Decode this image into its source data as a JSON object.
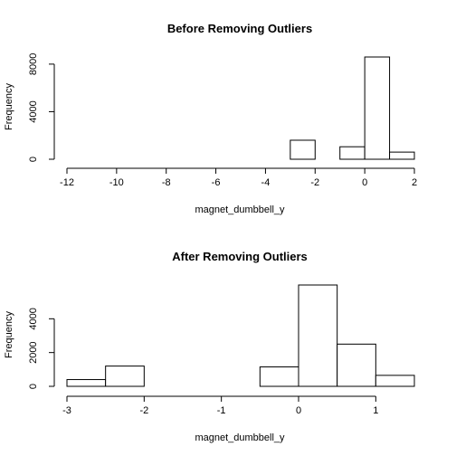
{
  "chart_data": [
    {
      "type": "bar",
      "title": "Before Removing Outliers",
      "xlabel": "magnet_dumbbell_y",
      "ylabel": "Frequency",
      "xlim": [
        -12,
        2
      ],
      "ylim": [
        0,
        8600
      ],
      "x_ticks": [
        -12,
        -10,
        -8,
        -6,
        -4,
        -2,
        0,
        2
      ],
      "y_ticks": [
        0,
        4000,
        8000
      ],
      "bins": [
        {
          "x0": -12,
          "x1": -3,
          "count": 0
        },
        {
          "x0": -3,
          "x1": -2,
          "count": 1600
        },
        {
          "x0": -2,
          "x1": -1,
          "count": 0
        },
        {
          "x0": -1,
          "x1": 0,
          "count": 1050
        },
        {
          "x0": 0,
          "x1": 1,
          "count": 8600
        },
        {
          "x0": 1,
          "x1": 2,
          "count": 600
        }
      ]
    },
    {
      "type": "bar",
      "title": "After Removing Outliers",
      "xlabel": "magnet_dumbbell_y",
      "ylabel": "Frequency",
      "xlim": [
        -3,
        1.5
      ],
      "ylim": [
        0,
        6000
      ],
      "x_ticks": [
        -3,
        -2,
        -1,
        0,
        1
      ],
      "y_ticks": [
        0,
        2000,
        4000
      ],
      "bins": [
        {
          "x0": -3,
          "x1": -2.5,
          "count": 400
        },
        {
          "x0": -2.5,
          "x1": -2,
          "count": 1200
        },
        {
          "x0": -2,
          "x1": -0.5,
          "count": 0
        },
        {
          "x0": -0.5,
          "x1": 0,
          "count": 1150
        },
        {
          "x0": 0,
          "x1": 0.5,
          "count": 6000
        },
        {
          "x0": 0.5,
          "x1": 1,
          "count": 2500
        },
        {
          "x0": 1,
          "x1": 1.5,
          "count": 650
        }
      ]
    }
  ]
}
